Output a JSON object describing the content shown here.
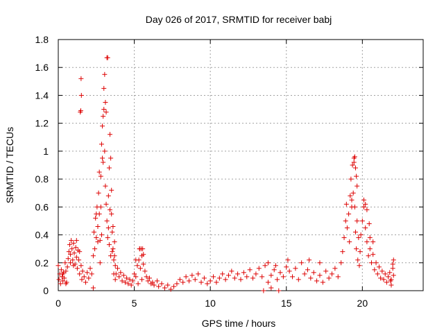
{
  "chart_data": {
    "type": "scatter",
    "title": "Day 026 of 2017, SRMTID for receiver babj",
    "xlabel": "GPS time / hours",
    "ylabel": "SRMTID / TECUs",
    "xlim": [
      0,
      24
    ],
    "ylim": [
      0,
      1.8
    ],
    "x_ticks": [
      0,
      5,
      10,
      15,
      20
    ],
    "x_tick_labels": [
      "0",
      "5",
      "10",
      "15",
      "20"
    ],
    "y_ticks": [
      0,
      0.2,
      0.4,
      0.6,
      0.8,
      1,
      1.2,
      1.4,
      1.6,
      1.8
    ],
    "y_tick_labels": [
      "0",
      "0.2",
      "0.4",
      "0.6",
      "0.8",
      "1",
      "1.2",
      "1.4",
      "1.6",
      "1.8"
    ],
    "grid": true,
    "marker": "+",
    "marker_color": "#dd0000",
    "series": [
      {
        "name": "SRMTID",
        "points": [
          [
            0.0,
            0.18
          ],
          [
            0.05,
            0.08
          ],
          [
            0.1,
            0.12
          ],
          [
            0.15,
            0.05
          ],
          [
            0.2,
            0.15
          ],
          [
            0.25,
            0.1
          ],
          [
            0.3,
            0.07
          ],
          [
            0.35,
            0.13
          ],
          [
            0.4,
            0.09
          ],
          [
            0.45,
            0.2
          ],
          [
            0.5,
            0.14
          ],
          [
            0.55,
            0.06
          ],
          [
            0.6,
            0.17
          ],
          [
            0.65,
            0.23
          ],
          [
            0.7,
            0.28
          ],
          [
            0.75,
            0.33
          ],
          [
            0.8,
            0.26
          ],
          [
            0.85,
            0.36
          ],
          [
            0.9,
            0.3
          ],
          [
            0.95,
            0.22
          ],
          [
            1.0,
            0.34
          ],
          [
            1.05,
            0.27
          ],
          [
            1.1,
            0.19
          ],
          [
            1.15,
            0.31
          ],
          [
            1.2,
            0.24
          ],
          [
            1.25,
            0.16
          ],
          [
            1.3,
            0.29
          ],
          [
            1.35,
            0.22
          ],
          [
            1.4,
            0.12
          ],
          [
            1.5,
            0.18
          ],
          [
            1.55,
            0.08
          ],
          [
            1.6,
            0.14
          ],
          [
            1.7,
            0.1
          ],
          [
            1.8,
            0.06
          ],
          [
            1.9,
            0.13
          ],
          [
            2.0,
            0.09
          ],
          [
            2.1,
            0.16
          ],
          [
            2.2,
            0.12
          ],
          [
            2.3,
            0.25
          ],
          [
            2.35,
            0.42
          ],
          [
            2.4,
            0.3
          ],
          [
            2.45,
            0.52
          ],
          [
            2.5,
            0.38
          ],
          [
            2.55,
            0.6
          ],
          [
            2.6,
            0.46
          ],
          [
            2.65,
            0.7
          ],
          [
            2.7,
            0.55
          ],
          [
            2.75,
            0.36
          ],
          [
            2.8,
            0.82
          ],
          [
            2.85,
            1.05
          ],
          [
            2.9,
            1.18
          ],
          [
            2.95,
            0.92
          ],
          [
            3.0,
            1.3
          ],
          [
            3.05,
            1.0
          ],
          [
            3.1,
            0.75
          ],
          [
            3.15,
            0.62
          ],
          [
            3.2,
            0.5
          ],
          [
            3.25,
            0.38
          ],
          [
            3.3,
            0.68
          ],
          [
            3.35,
            0.88
          ],
          [
            3.4,
            1.12
          ],
          [
            3.45,
            0.95
          ],
          [
            3.5,
            0.55
          ],
          [
            3.55,
            0.42
          ],
          [
            3.6,
            0.3
          ],
          [
            3.65,
            0.22
          ],
          [
            3.7,
            0.35
          ],
          [
            3.75,
            0.18
          ],
          [
            3.8,
            0.12
          ],
          [
            3.9,
            0.16
          ],
          [
            4.0,
            0.1
          ],
          [
            4.1,
            0.13
          ],
          [
            4.2,
            0.07
          ],
          [
            4.3,
            0.11
          ],
          [
            4.4,
            0.06
          ],
          [
            4.5,
            0.09
          ],
          [
            4.6,
            0.05
          ],
          [
            4.7,
            0.08
          ],
          [
            4.8,
            0.04
          ],
          [
            4.9,
            0.07
          ],
          [
            5.0,
            0.12
          ],
          [
            5.1,
            0.1
          ],
          [
            5.2,
            0.18
          ],
          [
            5.3,
            0.22
          ],
          [
            5.35,
            0.3
          ],
          [
            5.4,
            0.16
          ],
          [
            5.5,
            0.25
          ],
          [
            5.55,
            0.3
          ],
          [
            5.6,
            0.19
          ],
          [
            5.7,
            0.14
          ],
          [
            5.8,
            0.1
          ],
          [
            5.9,
            0.07
          ],
          [
            6.0,
            0.09
          ],
          [
            6.1,
            0.05
          ],
          [
            6.2,
            0.06
          ],
          [
            6.3,
            0.04
          ],
          [
            6.5,
            0.07
          ],
          [
            6.6,
            0.03
          ],
          [
            6.8,
            0.05
          ],
          [
            7.0,
            0.02
          ],
          [
            7.2,
            0.04
          ],
          [
            7.4,
            0.01
          ],
          [
            7.6,
            0.03
          ],
          [
            7.8,
            0.05
          ],
          [
            8.0,
            0.08
          ],
          [
            8.2,
            0.06
          ],
          [
            8.4,
            0.1
          ],
          [
            8.6,
            0.07
          ],
          [
            8.8,
            0.11
          ],
          [
            9.0,
            0.08
          ],
          [
            9.2,
            0.12
          ],
          [
            9.4,
            0.06
          ],
          [
            9.6,
            0.09
          ],
          [
            9.8,
            0.05
          ],
          [
            10.0,
            0.07
          ],
          [
            10.2,
            0.1
          ],
          [
            10.4,
            0.06
          ],
          [
            10.6,
            0.09
          ],
          [
            10.8,
            0.12
          ],
          [
            11.0,
            0.08
          ],
          [
            11.2,
            0.11
          ],
          [
            11.4,
            0.14
          ],
          [
            11.6,
            0.09
          ],
          [
            11.8,
            0.12
          ],
          [
            12.0,
            0.08
          ],
          [
            12.2,
            0.13
          ],
          [
            12.4,
            0.1
          ],
          [
            12.6,
            0.15
          ],
          [
            12.8,
            0.09
          ],
          [
            13.0,
            0.12
          ],
          [
            13.2,
            0.16
          ],
          [
            13.4,
            0.1
          ],
          [
            13.6,
            0.18
          ],
          [
            13.8,
            0.06
          ],
          [
            14.0,
            0.11
          ],
          [
            14.2,
            0.15
          ],
          [
            14.4,
            0.08
          ],
          [
            14.6,
            0.13
          ],
          [
            14.8,
            0.1
          ],
          [
            15.0,
            0.17
          ],
          [
            15.1,
            0.22
          ],
          [
            15.2,
            0.14
          ],
          [
            15.4,
            0.1
          ],
          [
            15.6,
            0.16
          ],
          [
            15.8,
            0.08
          ],
          [
            16.0,
            0.2
          ],
          [
            16.2,
            0.12
          ],
          [
            16.4,
            0.15
          ],
          [
            16.6,
            0.09
          ],
          [
            16.8,
            0.13
          ],
          [
            17.0,
            0.07
          ],
          [
            17.2,
            0.11
          ],
          [
            17.4,
            0.06
          ],
          [
            17.6,
            0.14
          ],
          [
            17.8,
            0.09
          ],
          [
            18.0,
            0.12
          ],
          [
            18.2,
            0.16
          ],
          [
            18.4,
            0.1
          ],
          [
            18.6,
            0.2
          ],
          [
            18.7,
            0.28
          ],
          [
            18.8,
            0.38
          ],
          [
            18.9,
            0.5
          ],
          [
            18.95,
            0.62
          ],
          [
            19.0,
            0.45
          ],
          [
            19.1,
            0.55
          ],
          [
            19.15,
            0.35
          ],
          [
            19.2,
            0.68
          ],
          [
            19.25,
            0.8
          ],
          [
            19.3,
            0.6
          ],
          [
            19.35,
            0.9
          ],
          [
            19.4,
            0.7
          ],
          [
            19.45,
            0.95
          ],
          [
            19.5,
            0.6
          ],
          [
            19.55,
            0.42
          ],
          [
            19.6,
            0.3
          ],
          [
            19.65,
            0.5
          ],
          [
            19.7,
            0.22
          ],
          [
            19.75,
            0.38
          ],
          [
            19.8,
            0.18
          ],
          [
            19.85,
            0.28
          ],
          [
            19.9,
            0.4
          ],
          [
            20.0,
            0.5
          ],
          [
            20.1,
            0.6
          ],
          [
            20.2,
            0.45
          ],
          [
            20.3,
            0.35
          ],
          [
            20.4,
            0.25
          ],
          [
            20.5,
            0.3
          ],
          [
            20.6,
            0.2
          ],
          [
            20.7,
            0.26
          ],
          [
            20.8,
            0.15
          ],
          [
            20.9,
            0.2
          ],
          [
            21.0,
            0.12
          ],
          [
            21.1,
            0.17
          ],
          [
            21.2,
            0.09
          ],
          [
            21.3,
            0.14
          ],
          [
            21.4,
            0.08
          ],
          [
            21.5,
            0.12
          ],
          [
            21.6,
            0.06
          ],
          [
            21.7,
            0.1
          ],
          [
            21.8,
            0.13
          ],
          [
            21.9,
            0.08
          ],
          [
            22.0,
            0.16
          ],
          [
            22.05,
            0.11
          ],
          [
            0.3,
            0.12
          ],
          [
            0.5,
            0.05
          ],
          [
            0.8,
            0.2
          ],
          [
            1.0,
            0.18
          ],
          [
            1.2,
            0.36
          ],
          [
            1.4,
            0.28
          ],
          [
            1.45,
            1.28
          ],
          [
            1.5,
            1.52
          ],
          [
            1.52,
            1.4
          ],
          [
            1.48,
            1.29
          ],
          [
            2.3,
            0.02
          ],
          [
            2.5,
            0.55
          ],
          [
            2.6,
            0.35
          ],
          [
            2.7,
            0.85
          ],
          [
            2.75,
            0.2
          ],
          [
            2.8,
            0.6
          ],
          [
            2.85,
            0.4
          ],
          [
            2.9,
            0.95
          ],
          [
            2.95,
            1.25
          ],
          [
            3.0,
            1.45
          ],
          [
            3.05,
            1.55
          ],
          [
            3.1,
            1.35
          ],
          [
            3.15,
            1.28
          ],
          [
            3.2,
            1.67
          ],
          [
            3.25,
            1.67
          ],
          [
            3.3,
            0.45
          ],
          [
            3.35,
            0.33
          ],
          [
            3.4,
            0.58
          ],
          [
            3.45,
            0.25
          ],
          [
            3.5,
            0.72
          ],
          [
            3.55,
            0.28
          ],
          [
            3.6,
            0.46
          ],
          [
            3.65,
            0.12
          ],
          [
            3.7,
            0.25
          ],
          [
            3.75,
            0.08
          ],
          [
            5.35,
            0.3
          ],
          [
            5.45,
            0.3
          ],
          [
            5.6,
            0.26
          ],
          [
            5.1,
            0.22
          ],
          [
            5.25,
            0.05
          ],
          [
            5.5,
            0.08
          ],
          [
            13.5,
            0.0
          ],
          [
            14.0,
            0.02
          ],
          [
            14.5,
            0.0
          ],
          [
            13.8,
            0.2
          ],
          [
            14.3,
            0.18
          ],
          [
            16.5,
            0.22
          ],
          [
            17.2,
            0.2
          ],
          [
            19.3,
            0.65
          ],
          [
            19.45,
            0.92
          ],
          [
            19.5,
            0.96
          ],
          [
            19.55,
            0.88
          ],
          [
            19.6,
            0.82
          ],
          [
            19.65,
            0.75
          ],
          [
            20.1,
            0.65
          ],
          [
            20.2,
            0.62
          ],
          [
            20.3,
            0.58
          ],
          [
            20.45,
            0.48
          ],
          [
            20.5,
            0.38
          ],
          [
            20.7,
            0.35
          ],
          [
            22.05,
            0.22
          ],
          [
            22.0,
            0.19
          ],
          [
            21.9,
            0.04
          ],
          [
            21.85,
            0.07
          ]
        ]
      }
    ]
  }
}
